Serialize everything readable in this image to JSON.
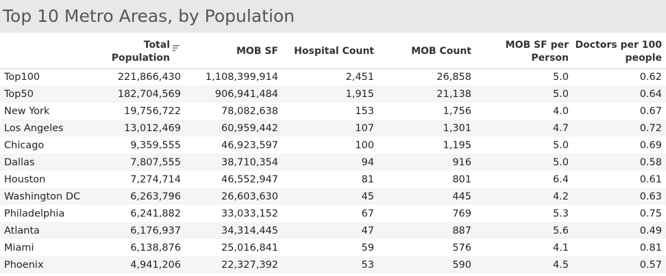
{
  "title": "Top 10 Metro Areas, by Population",
  "chart_data": {
    "type": "table",
    "title": "Top 10 Metro Areas, by Population",
    "columns": [
      "",
      "Total Population",
      "MOB SF",
      "Hospital Count",
      "MOB Count",
      "MOB SF per Person",
      "Doctors per 100 people"
    ],
    "sort": {
      "column": "Total Population",
      "order": "descending"
    },
    "rows": [
      [
        "Top100",
        "221,866,430",
        "1,108,399,914",
        "2,451",
        "26,858",
        "5.0",
        "0.62"
      ],
      [
        "Top50",
        "182,704,569",
        "906,941,484",
        "1,915",
        "21,138",
        "5.0",
        "0.64"
      ],
      [
        "New York",
        "19,756,722",
        "78,082,638",
        "153",
        "1,756",
        "4.0",
        "0.67"
      ],
      [
        "Los Angeles",
        "13,012,469",
        "60,959,442",
        "107",
        "1,301",
        "4.7",
        "0.72"
      ],
      [
        "Chicago",
        "9,359,555",
        "46,923,597",
        "100",
        "1,195",
        "5.0",
        "0.69"
      ],
      [
        "Dallas",
        "7,807,555",
        "38,710,354",
        "94",
        "916",
        "5.0",
        "0.58"
      ],
      [
        "Houston",
        "7,274,714",
        "46,552,947",
        "81",
        "801",
        "6.4",
        "0.61"
      ],
      [
        "Washington DC",
        "6,263,796",
        "26,603,630",
        "45",
        "445",
        "4.2",
        "0.63"
      ],
      [
        "Philadelphia",
        "6,241,882",
        "33,033,152",
        "67",
        "769",
        "5.3",
        "0.75"
      ],
      [
        "Atlanta",
        "6,176,937",
        "34,314,445",
        "47",
        "887",
        "5.6",
        "0.49"
      ],
      [
        "Miami",
        "6,138,876",
        "25,016,841",
        "59",
        "576",
        "4.1",
        "0.81"
      ],
      [
        "Phoenix",
        "4,941,206",
        "22,327,392",
        "53",
        "590",
        "4.5",
        "0.57"
      ]
    ]
  },
  "header_lines": {
    "total_population": [
      "Total",
      "Population"
    ],
    "mob_sf_per_person": [
      "MOB SF per",
      "Person"
    ],
    "doctors_per_100": [
      "Doctors per 100",
      "people"
    ]
  }
}
